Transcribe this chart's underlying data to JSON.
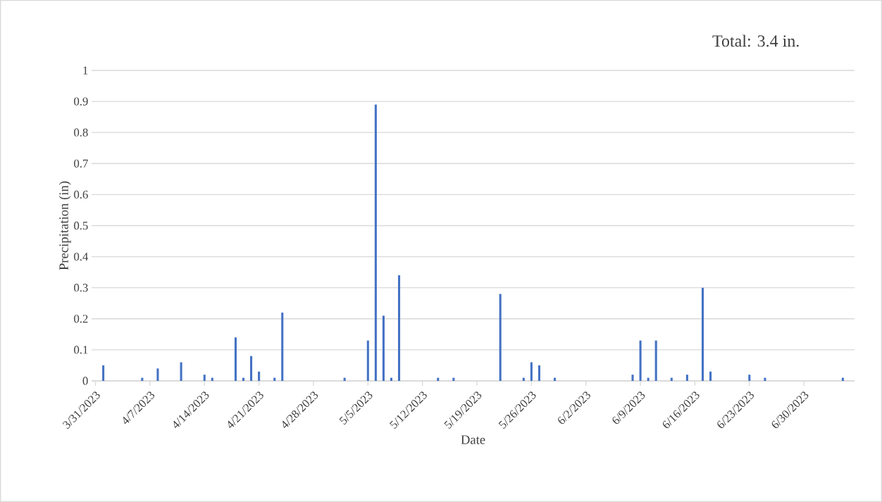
{
  "chart_data": {
    "type": "bar",
    "xlabel": "Date",
    "ylabel": "Precipitation (in)",
    "annotations": [
      "Total: 3.4 in."
    ],
    "x": [
      "2023-04-01",
      "2023-04-06",
      "2023-04-08",
      "2023-04-11",
      "2023-04-14",
      "2023-04-15",
      "2023-04-18",
      "2023-04-19",
      "2023-04-20",
      "2023-04-21",
      "2023-04-23",
      "2023-04-24",
      "2023-05-02",
      "2023-05-05",
      "2023-05-06",
      "2023-05-07",
      "2023-05-08",
      "2023-05-09",
      "2023-05-14",
      "2023-05-16",
      "2023-05-22",
      "2023-05-25",
      "2023-05-26",
      "2023-05-27",
      "2023-05-29",
      "2023-06-08",
      "2023-06-09",
      "2023-06-10",
      "2023-06-11",
      "2023-06-13",
      "2023-06-15",
      "2023-06-17",
      "2023-06-18",
      "2023-06-23",
      "2023-06-25",
      "2023-07-05"
    ],
    "values": [
      0.05,
      0.01,
      0.04,
      0.06,
      0.02,
      0.01,
      0.14,
      0.01,
      0.08,
      0.03,
      0.01,
      0.22,
      0.01,
      0.13,
      0.89,
      0.21,
      0.01,
      0.34,
      0.01,
      0.01,
      0.28,
      0.01,
      0.06,
      0.05,
      0.01,
      0.02,
      0.13,
      0.01,
      0.13,
      0.01,
      0.02,
      0.3,
      0.03,
      0.02,
      0.01,
      0.01
    ],
    "color": "#4472c4",
    "xlim": [
      "2023-03-30T12:00",
      "2023-07-06T12:00"
    ],
    "xticks": [
      {
        "value": "2023-03-31",
        "label": "3/31/2023"
      },
      {
        "value": "2023-04-07",
        "label": "4/7/2023"
      },
      {
        "value": "2023-04-14",
        "label": "4/14/2023"
      },
      {
        "value": "2023-04-21",
        "label": "4/21/2023"
      },
      {
        "value": "2023-04-28",
        "label": "4/28/2023"
      },
      {
        "value": "2023-05-05",
        "label": "5/5/2023"
      },
      {
        "value": "2023-05-12",
        "label": "5/12/2023"
      },
      {
        "value": "2023-05-19",
        "label": "5/19/2023"
      },
      {
        "value": "2023-05-26",
        "label": "5/26/2023"
      },
      {
        "value": "2023-06-02",
        "label": "6/2/2023"
      },
      {
        "value": "2023-06-09",
        "label": "6/9/2023"
      },
      {
        "value": "2023-06-16",
        "label": "6/16/2023"
      },
      {
        "value": "2023-06-23",
        "label": "6/23/2023"
      },
      {
        "value": "2023-06-30",
        "label": "6/30/2023"
      }
    ],
    "ylim": [
      0,
      1
    ],
    "yticks": [
      0,
      0.1,
      0.2,
      0.3,
      0.4,
      0.5,
      0.6,
      0.7,
      0.8,
      0.9,
      1
    ],
    "grid": "y"
  }
}
